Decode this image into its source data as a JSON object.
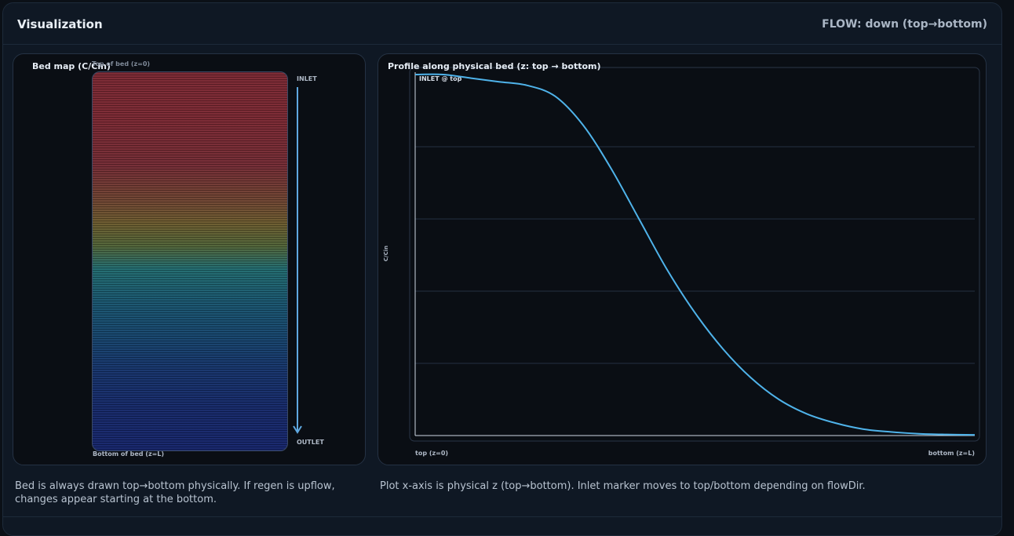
{
  "header": {
    "title": "Visualization",
    "flow_status": "FLOW: down (top→bottom)"
  },
  "bed_map": {
    "title": "Bed map (C/Cin)",
    "top_label": "Top of bed (z=0)",
    "bottom_label": "Bottom of bed (z=L)",
    "inlet_label": "INLET",
    "outlet_label": "OUTLET",
    "colors": {
      "high": "#7a2631",
      "mid": "#1f6a6e",
      "low": "#14236a",
      "arrow": "#5fa8e0"
    }
  },
  "profile": {
    "title": "Profile along physical bed (z: top → bottom)",
    "inlet_marker": "INLET @ top",
    "ylabel": "C/Cin",
    "x_start_label": "top (z=0)",
    "x_end_label": "bottom (z=L)",
    "line_color": "#4fb3ea"
  },
  "chart_data": {
    "type": "line",
    "x": [
      0,
      0.05,
      0.1,
      0.15,
      0.2,
      0.25,
      0.3,
      0.35,
      0.4,
      0.45,
      0.5,
      0.55,
      0.6,
      0.65,
      0.7,
      0.75,
      0.8,
      0.85,
      0.9,
      0.95,
      1.0
    ],
    "series": [
      {
        "values": [
          1.0,
          1.0,
          0.99,
          0.98,
          0.97,
          0.94,
          0.86,
          0.74,
          0.6,
          0.46,
          0.34,
          0.24,
          0.16,
          0.1,
          0.06,
          0.035,
          0.018,
          0.01,
          0.005,
          0.003,
          0.002
        ]
      }
    ],
    "xlim": [
      0,
      1
    ],
    "ylim": [
      0,
      1
    ],
    "grid": true,
    "xlabel": "",
    "ylabel": "C/Cin"
  },
  "captions": {
    "left": "Bed is always drawn top→bottom physically. If regen is upflow, changes appear starting at the bottom.",
    "right": "Plot x-axis is physical z (top→bottom). Inlet marker moves to top/bottom depending on flowDir."
  }
}
